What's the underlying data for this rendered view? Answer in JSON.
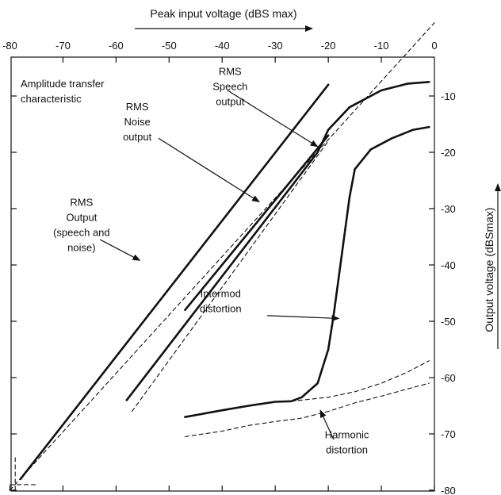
{
  "chart_data": {
    "type": "line",
    "title": "Amplitude transfer characteristic",
    "xlabel": "Peak input voltage (dBS max)",
    "ylabel": "Output voltage (dBSmax)",
    "xlim": [
      -80,
      0
    ],
    "ylim": [
      -80,
      0
    ],
    "x_ticks": [
      "-80",
      "-70",
      "-60",
      "-50",
      "-40",
      "-30",
      "-20",
      "-10",
      "0"
    ],
    "y_ticks": [
      "-10",
      "-20",
      "-30",
      "-40",
      "-50",
      "-60",
      "-70",
      "-80"
    ],
    "grid": false,
    "series": [
      {
        "key": "rms_output",
        "style": "solid-thick",
        "points": [
          [
            -78,
            -78
          ],
          [
            -20,
            -8
          ]
        ]
      },
      {
        "key": "rms_noise",
        "style": "solid-thick",
        "points": [
          [
            -58,
            -64
          ],
          [
            -22,
            -20
          ],
          [
            -20,
            -16
          ],
          [
            -16,
            -12
          ],
          [
            -10,
            -9
          ],
          [
            -5,
            -7.8
          ],
          [
            -1,
            -7.5
          ]
        ]
      },
      {
        "key": "rms_speech",
        "style": "solid-thick",
        "points": [
          [
            -47,
            -48
          ],
          [
            -20,
            -17
          ]
        ]
      },
      {
        "key": "diagonal_reference",
        "style": "dashed",
        "points": [
          [
            -80,
            -80
          ],
          [
            0,
            3
          ]
        ]
      },
      {
        "key": "dashed_speech_ref",
        "style": "dashed",
        "points": [
          [
            -57,
            -66
          ],
          [
            -20,
            -18
          ]
        ]
      },
      {
        "key": "intermod",
        "style": "solid-thick",
        "points": [
          [
            -47,
            -67
          ],
          [
            -40,
            -65.8
          ],
          [
            -35,
            -65
          ],
          [
            -30,
            -64.3
          ],
          [
            -27,
            -64.2
          ],
          [
            -25,
            -63.5
          ],
          [
            -22,
            -61
          ],
          [
            -20,
            -55
          ],
          [
            -19,
            -49
          ],
          [
            -18,
            -42
          ],
          [
            -17,
            -35
          ],
          [
            -16,
            -28
          ],
          [
            -15,
            -23
          ],
          [
            -12,
            -19.5
          ],
          [
            -8,
            -17.5
          ],
          [
            -4,
            -16
          ],
          [
            -1,
            -15.5
          ]
        ]
      },
      {
        "key": "harmonic_upper",
        "style": "dashed",
        "points": [
          [
            -27,
            -64.2
          ],
          [
            -20,
            -63.5
          ],
          [
            -15,
            -62.5
          ],
          [
            -10,
            -61
          ],
          [
            -5,
            -59
          ],
          [
            -1,
            -57
          ]
        ]
      },
      {
        "key": "harmonic_lower",
        "style": "dashed",
        "points": [
          [
            -47,
            -70.5
          ],
          [
            -40,
            -69.5
          ],
          [
            -35,
            -68.5
          ],
          [
            -30,
            -67.8
          ],
          [
            -25,
            -67.2
          ],
          [
            -20,
            -66
          ],
          [
            -15,
            -64.5
          ],
          [
            -10,
            -63.3
          ],
          [
            -5,
            -62
          ],
          [
            -1,
            -61
          ]
        ]
      },
      {
        "key": "corner_vertical",
        "style": "dashed",
        "points": [
          [
            -79,
            -80
          ],
          [
            -79,
            -74
          ]
        ]
      },
      {
        "key": "corner_horizontal",
        "style": "dashed",
        "points": [
          [
            -80,
            -79
          ],
          [
            -75,
            -79
          ]
        ]
      }
    ],
    "annotations": [
      {
        "key": "rms_speech_label",
        "lines": [
          "RMS",
          "Speech",
          "output"
        ],
        "anchor": [
          -38.5,
          -6.3
        ],
        "arrow_from": [
          -39,
          -9
        ],
        "arrow_to": [
          -22,
          -19
        ]
      },
      {
        "key": "rms_noise_label",
        "lines": [
          "RMS",
          "Noise",
          "output"
        ],
        "anchor": [
          -56,
          -12.5
        ],
        "arrow_from": [
          -52,
          -17.5
        ],
        "arrow_to": [
          -33,
          -28.8
        ]
      },
      {
        "key": "rms_output_label",
        "lines": [
          "RMS",
          "Output",
          "(speech and",
          "noise)"
        ],
        "anchor": [
          -66.5,
          -29.5
        ],
        "arrow_from": [
          -63,
          -35.5
        ],
        "arrow_to": [
          -55.5,
          -39.2
        ]
      },
      {
        "key": "intermod_label",
        "lines": [
          "Intermod",
          "distortion"
        ],
        "anchor": [
          -40.3,
          -45.7
        ],
        "arrow_from": [
          -31.5,
          -49
        ],
        "arrow_to": [
          -18,
          -49.5
        ]
      },
      {
        "key": "harmonic_label",
        "lines": [
          "Harmonic",
          "distortion"
        ],
        "anchor": [
          -16.5,
          -70.8
        ],
        "arrow_from": [
          -19,
          -71
        ],
        "arrow_to": [
          -21.5,
          -65.8
        ]
      }
    ]
  }
}
